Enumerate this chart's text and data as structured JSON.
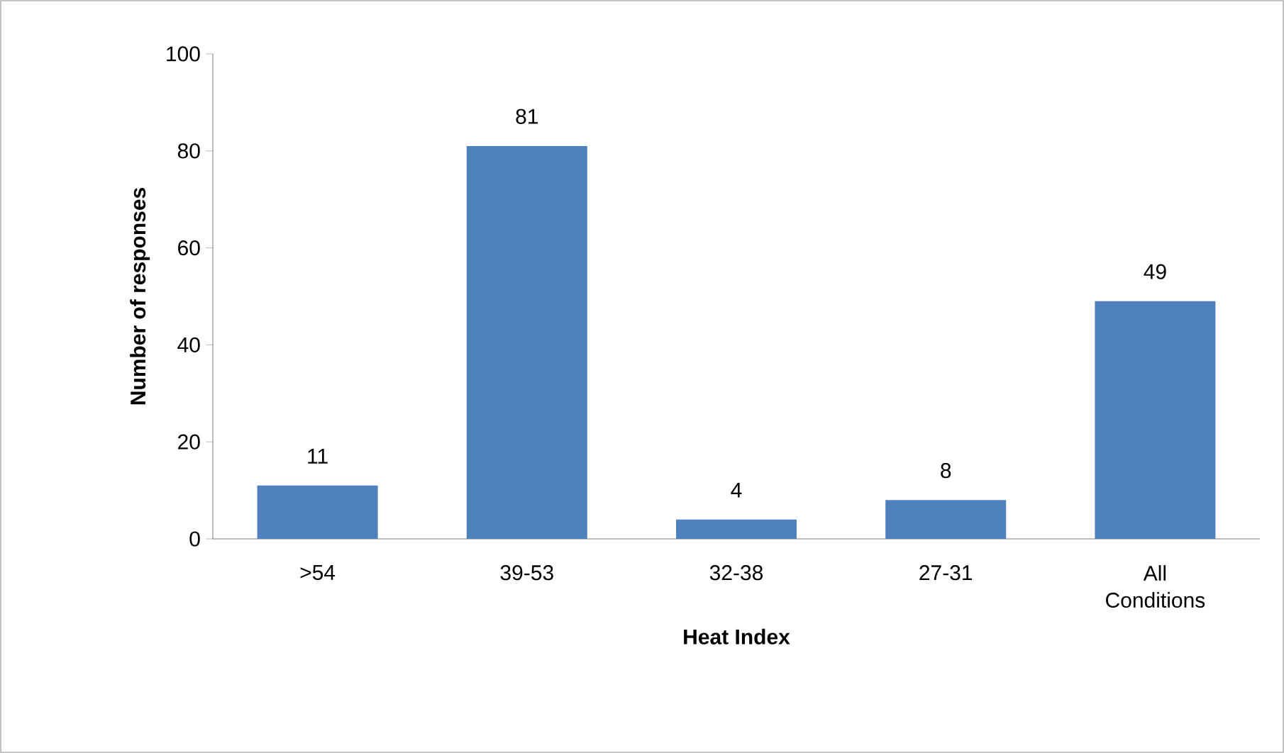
{
  "chart_data": {
    "type": "bar",
    "xlabel": "Heat Index",
    "ylabel": "Number of responses",
    "categories": [
      ">54",
      "39-53",
      "32-38",
      "27-31",
      "All Conditions"
    ],
    "values": [
      11,
      81,
      4,
      8,
      49
    ],
    "color": "#4f81bd",
    "ylim": [
      0,
      100
    ],
    "yticks": [
      0,
      20,
      40,
      60,
      80,
      100
    ],
    "data_labels": true,
    "grid": false
  }
}
